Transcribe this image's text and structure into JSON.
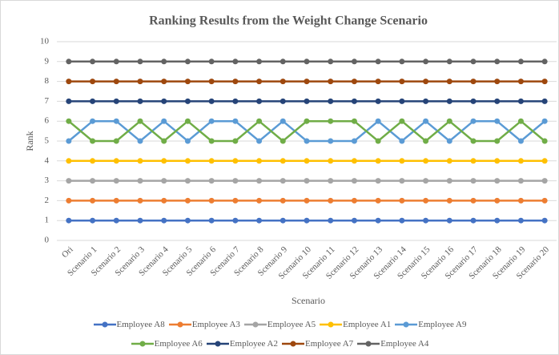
{
  "chart_data": {
    "type": "line",
    "title": "Ranking Results from the Weight Change Scenario",
    "x_label": "Scenario",
    "y_label": "Rank",
    "categories": [
      "Ori",
      "Scenario 1",
      "Scenario 2",
      "Scenario 3",
      "Scenario 4",
      "Scenario 5",
      "Scenario 6",
      "Scenario 7",
      "Scenario 8",
      "Scenario 9",
      "Scenario 10",
      "Scenario 11",
      "Scenario 12",
      "Scenario 13",
      "Scenario 14",
      "Scenario 15",
      "Scenario 16",
      "Scenario 17",
      "Scenario 18",
      "Scenario 19",
      "Scenario 20"
    ],
    "series": [
      {
        "name": "Employee A8",
        "color": "#4472c4",
        "values": [
          1,
          1,
          1,
          1,
          1,
          1,
          1,
          1,
          1,
          1,
          1,
          1,
          1,
          1,
          1,
          1,
          1,
          1,
          1,
          1,
          1
        ]
      },
      {
        "name": "Employee A3",
        "color": "#ed7d31",
        "values": [
          2,
          2,
          2,
          2,
          2,
          2,
          2,
          2,
          2,
          2,
          2,
          2,
          2,
          2,
          2,
          2,
          2,
          2,
          2,
          2,
          2
        ]
      },
      {
        "name": "Employee A5",
        "color": "#a5a5a5",
        "values": [
          3,
          3,
          3,
          3,
          3,
          3,
          3,
          3,
          3,
          3,
          3,
          3,
          3,
          3,
          3,
          3,
          3,
          3,
          3,
          3,
          3
        ]
      },
      {
        "name": "Employee A1",
        "color": "#ffc000",
        "values": [
          4,
          4,
          4,
          4,
          4,
          4,
          4,
          4,
          4,
          4,
          4,
          4,
          4,
          4,
          4,
          4,
          4,
          4,
          4,
          4,
          4
        ]
      },
      {
        "name": "Employee A9",
        "color": "#5b9bd5",
        "values": [
          5,
          6,
          6,
          5,
          6,
          5,
          6,
          6,
          5,
          6,
          5,
          5,
          5,
          6,
          5,
          6,
          5,
          6,
          6,
          5,
          6
        ]
      },
      {
        "name": "Employee A6",
        "color": "#70ad47",
        "values": [
          6,
          5,
          5,
          6,
          5,
          6,
          5,
          5,
          6,
          5,
          6,
          6,
          6,
          5,
          6,
          5,
          6,
          5,
          5,
          6,
          5
        ]
      },
      {
        "name": "Employee A2",
        "color": "#264478",
        "values": [
          7,
          7,
          7,
          7,
          7,
          7,
          7,
          7,
          7,
          7,
          7,
          7,
          7,
          7,
          7,
          7,
          7,
          7,
          7,
          7,
          7
        ]
      },
      {
        "name": "Employee A7",
        "color": "#9e480e",
        "values": [
          8,
          8,
          8,
          8,
          8,
          8,
          8,
          8,
          8,
          8,
          8,
          8,
          8,
          8,
          8,
          8,
          8,
          8,
          8,
          8,
          8
        ]
      },
      {
        "name": "Employee A4",
        "color": "#636363",
        "values": [
          9,
          9,
          9,
          9,
          9,
          9,
          9,
          9,
          9,
          9,
          9,
          9,
          9,
          9,
          9,
          9,
          9,
          9,
          9,
          9,
          9
        ]
      }
    ],
    "ylim": [
      0,
      10
    ],
    "yticks": [
      0,
      1,
      2,
      3,
      4,
      5,
      6,
      7,
      8,
      9,
      10
    ],
    "grid": true
  }
}
